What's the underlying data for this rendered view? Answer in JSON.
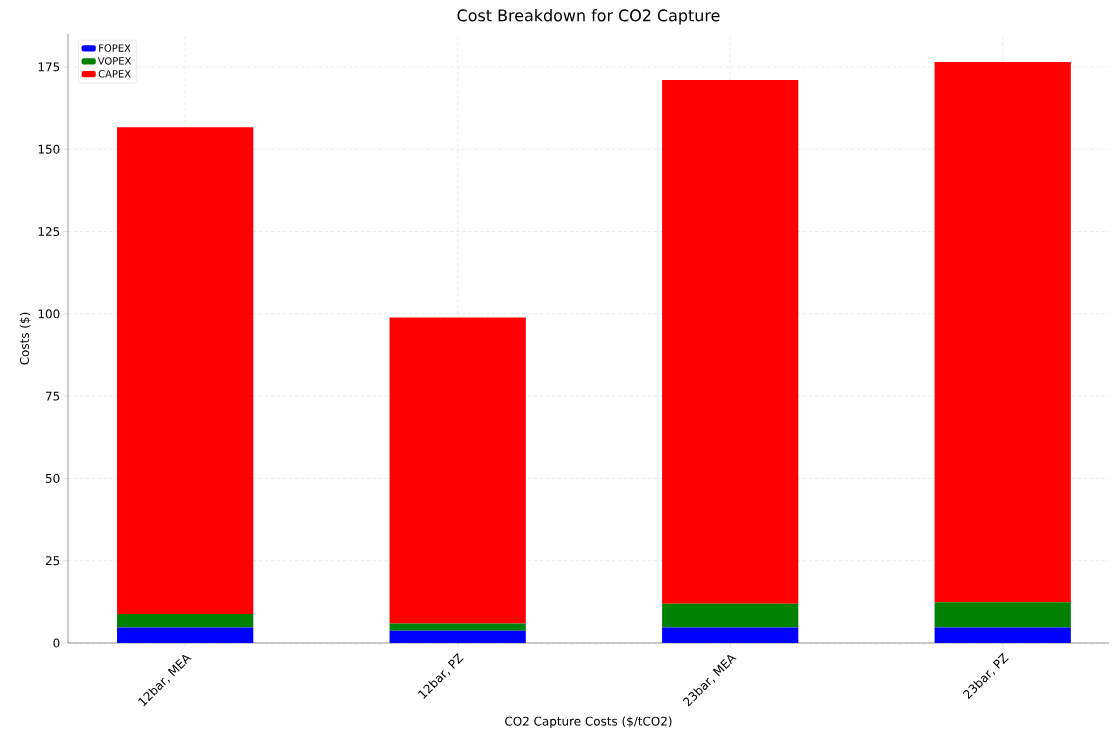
{
  "chart_data": {
    "type": "bar",
    "stacked": true,
    "title": "Cost Breakdown for CO2 Capture",
    "xlabel": "CO2 Capture Costs ($/tCO2)",
    "ylabel": "Costs ($)",
    "categories": [
      "12bar, MEA",
      "12bar, PZ",
      "23bar, MEA",
      "23bar, PZ"
    ],
    "series": [
      {
        "name": "FOPEX",
        "color": "#0000ff",
        "values": [
          4.7,
          3.7,
          4.7,
          4.7
        ]
      },
      {
        "name": "VOPEX",
        "color": "#008000",
        "values": [
          4.1,
          2.2,
          7.2,
          7.7
        ]
      },
      {
        "name": "CAPEX",
        "color": "#ff0000",
        "values": [
          147.9,
          93.0,
          159.1,
          164.1
        ]
      }
    ],
    "ylim": [
      0,
      185
    ],
    "yticks": [
      0,
      25,
      50,
      75,
      100,
      125,
      150,
      175
    ],
    "grid": true,
    "legend": "top left"
  }
}
